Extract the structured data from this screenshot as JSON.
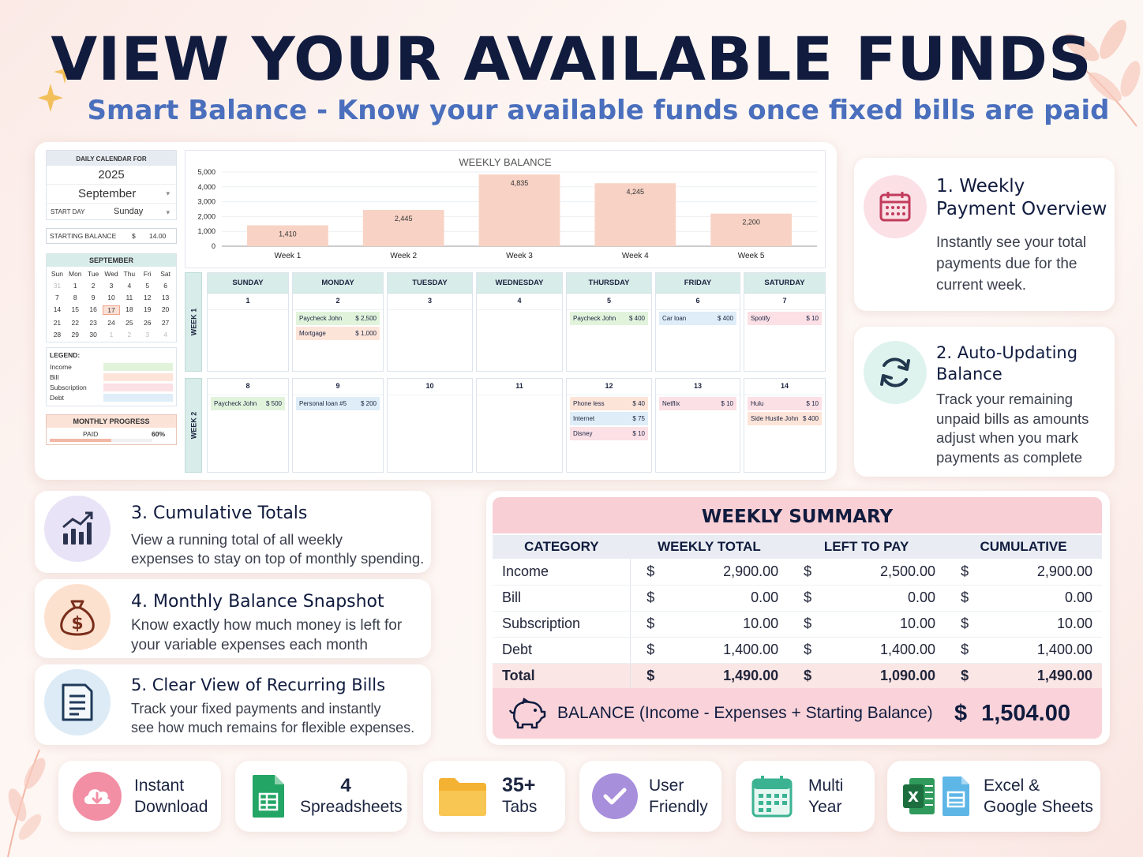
{
  "header": {
    "title": "VIEW YOUR AVAILABLE FUNDS",
    "subtitle": "Smart Balance - Know your available funds once fixed bills are paid"
  },
  "sheet": {
    "calendar_label": "DAILY CALENDAR FOR",
    "year": "2025",
    "month": "September",
    "start_day_label": "START DAY",
    "start_day": "Sunday",
    "starting_balance_label": "STARTING BALANCE",
    "starting_balance_currency": "$",
    "starting_balance": "14.00",
    "mini_cal_title": "SEPTEMBER",
    "mini_cal_days": [
      "Sun",
      "Mon",
      "Tue",
      "Wed",
      "Thu",
      "Fri",
      "Sat"
    ],
    "mini_cal_rows": [
      [
        "31",
        "1",
        "2",
        "3",
        "4",
        "5",
        "6"
      ],
      [
        "7",
        "8",
        "9",
        "10",
        "11",
        "12",
        "13"
      ],
      [
        "14",
        "15",
        "16",
        "17",
        "18",
        "19",
        "20"
      ],
      [
        "21",
        "22",
        "23",
        "24",
        "25",
        "26",
        "27"
      ],
      [
        "28",
        "29",
        "30",
        "1",
        "2",
        "3",
        "4"
      ]
    ],
    "legend_title": "LEGEND:",
    "legend": [
      {
        "label": "Income",
        "color": "#e2f3dc"
      },
      {
        "label": "Bill",
        "color": "#fde4d9"
      },
      {
        "label": "Subscription",
        "color": "#fbe0e6"
      },
      {
        "label": "Debt",
        "color": "#deedf7"
      }
    ],
    "progress_label": "MONTHLY PROGRESS",
    "paid_label": "PAID",
    "paid_percent": "60%",
    "paid_fraction": 0.6,
    "week_labels": [
      "WEEK 1",
      "WEEK 2"
    ],
    "day_names": [
      "SUNDAY",
      "MONDAY",
      "TUESDAY",
      "WEDNESDAY",
      "THURSDAY",
      "FRIDAY",
      "SATURDAY"
    ],
    "weeks": [
      [
        {
          "day": "1",
          "entries": []
        },
        {
          "day": "2",
          "entries": [
            {
              "name": "Paycheck John",
              "amt": "$   2,500",
              "type": "income"
            },
            {
              "name": "Mortgage",
              "amt": "$   1,000",
              "type": "bill"
            }
          ]
        },
        {
          "day": "3",
          "entries": []
        },
        {
          "day": "4",
          "entries": []
        },
        {
          "day": "5",
          "entries": [
            {
              "name": "Paycheck John",
              "amt": "$   400",
              "type": "income"
            }
          ]
        },
        {
          "day": "6",
          "entries": [
            {
              "name": "Car loan",
              "amt": "$   400",
              "type": "debt"
            }
          ]
        },
        {
          "day": "7",
          "entries": [
            {
              "name": "Spotify",
              "amt": "$   10",
              "type": "subs"
            }
          ]
        }
      ],
      [
        {
          "day": "8",
          "entries": [
            {
              "name": "Paycheck John",
              "amt": "$  500",
              "type": "income"
            }
          ]
        },
        {
          "day": "9",
          "entries": [
            {
              "name": "Personal loan #5",
              "amt": "$  200",
              "type": "debt"
            }
          ]
        },
        {
          "day": "10",
          "entries": []
        },
        {
          "day": "11",
          "entries": []
        },
        {
          "day": "12",
          "entries": [
            {
              "name": "Phone less",
              "amt": "$   40",
              "type": "bill"
            },
            {
              "name": "Internet",
              "amt": "$   75",
              "type": "debt"
            },
            {
              "name": "Disney",
              "amt": "$   10",
              "type": "subs"
            }
          ]
        },
        {
          "day": "13",
          "entries": [
            {
              "name": "Netflix",
              "amt": "$   10",
              "type": "subs"
            }
          ]
        },
        {
          "day": "14",
          "entries": [
            {
              "name": "Hulu",
              "amt": "$   10",
              "type": "subs"
            },
            {
              "name": "Side Hustle John",
              "amt": "$  400",
              "type": "bill"
            }
          ]
        }
      ]
    ]
  },
  "chart_data": {
    "type": "bar",
    "title": "WEEKLY BALANCE",
    "categories": [
      "Week 1",
      "Week 2",
      "Week 3",
      "Week 4",
      "Week 5"
    ],
    "values": [
      1410,
      2445,
      4835,
      4245,
      2200
    ],
    "value_labels": [
      "1,410",
      "2,445",
      "4,835",
      "4,245",
      "2,200"
    ],
    "yticks": [
      "0",
      "1,000",
      "2,000",
      "3,000",
      "4,000",
      "5,000"
    ],
    "ylim": [
      0,
      5000
    ],
    "bar_color": "#f8d3c5",
    "grid": true
  },
  "features": [
    {
      "title": "1. Weekly Payment Overview",
      "title_l1": "1. Weekly",
      "title_l2": "Payment Overview",
      "desc_l1": "Instantly see your total",
      "desc_l2": "payments due for the",
      "desc_l3": "current week.",
      "icon": "calendar-icon"
    },
    {
      "title_l1": "2. Auto-Updating",
      "title_l2": "Balance",
      "desc_l1": "Track your remaining",
      "desc_l2": "unpaid bills as amounts",
      "desc_l3": "adjust when you mark",
      "desc_l4": "payments as complete",
      "icon": "refresh-icon"
    },
    {
      "title": "3. Cumulative Totals",
      "desc_l1": "View a running total of all weekly",
      "desc_l2": "expenses to stay on top of monthly spending.",
      "icon": "chart-growth-icon"
    },
    {
      "title": "4. Monthly Balance Snapshot",
      "desc_l1": "Know exactly how much money is left for",
      "desc_l2": "your variable expenses each month",
      "icon": "money-bag-icon"
    },
    {
      "title": "5. Clear View of Recurring Bills",
      "desc_l1": "Track your fixed payments and instantly",
      "desc_l2": "see how much remains for flexible expenses.",
      "icon": "document-icon"
    }
  ],
  "summary": {
    "title": "WEEKLY SUMMARY",
    "columns": [
      "CATEGORY",
      "WEEKLY TOTAL",
      "LEFT TO PAY",
      "CUMULATIVE"
    ],
    "currency": "$",
    "rows": [
      {
        "category": "Income",
        "weekly": "2,900.00",
        "left": "2,500.00",
        "cumulative": "2,900.00"
      },
      {
        "category": "Bill",
        "weekly": "0.00",
        "left": "0.00",
        "cumulative": "0.00"
      },
      {
        "category": "Subscription",
        "weekly": "10.00",
        "left": "10.00",
        "cumulative": "10.00"
      },
      {
        "category": "Debt",
        "weekly": "1,400.00",
        "left": "1,400.00",
        "cumulative": "1,400.00"
      }
    ],
    "total": {
      "category": "Total",
      "weekly": "1,490.00",
      "left": "1,090.00",
      "cumulative": "1,490.00"
    },
    "balance_label": "BALANCE",
    "balance_formula": "(Income - Expenses + Starting Balance)",
    "balance_currency": "$",
    "balance_value": "1,504.00"
  },
  "badges": [
    {
      "l1": "Instant",
      "l2": "Download",
      "icon": "cloud-download-icon"
    },
    {
      "l1": "4",
      "l2": "Spreadsheets",
      "icon": "google-sheets-icon"
    },
    {
      "l1": "35+",
      "l2": "Tabs",
      "icon": "folder-icon"
    },
    {
      "l1": "User",
      "l2": "Friendly",
      "icon": "check-circle-icon"
    },
    {
      "l1": "Multi",
      "l2": "Year",
      "icon": "calendar-grid-icon"
    },
    {
      "l1": "Excel &",
      "l2": "Google Sheets",
      "icon": "excel-icon"
    }
  ]
}
